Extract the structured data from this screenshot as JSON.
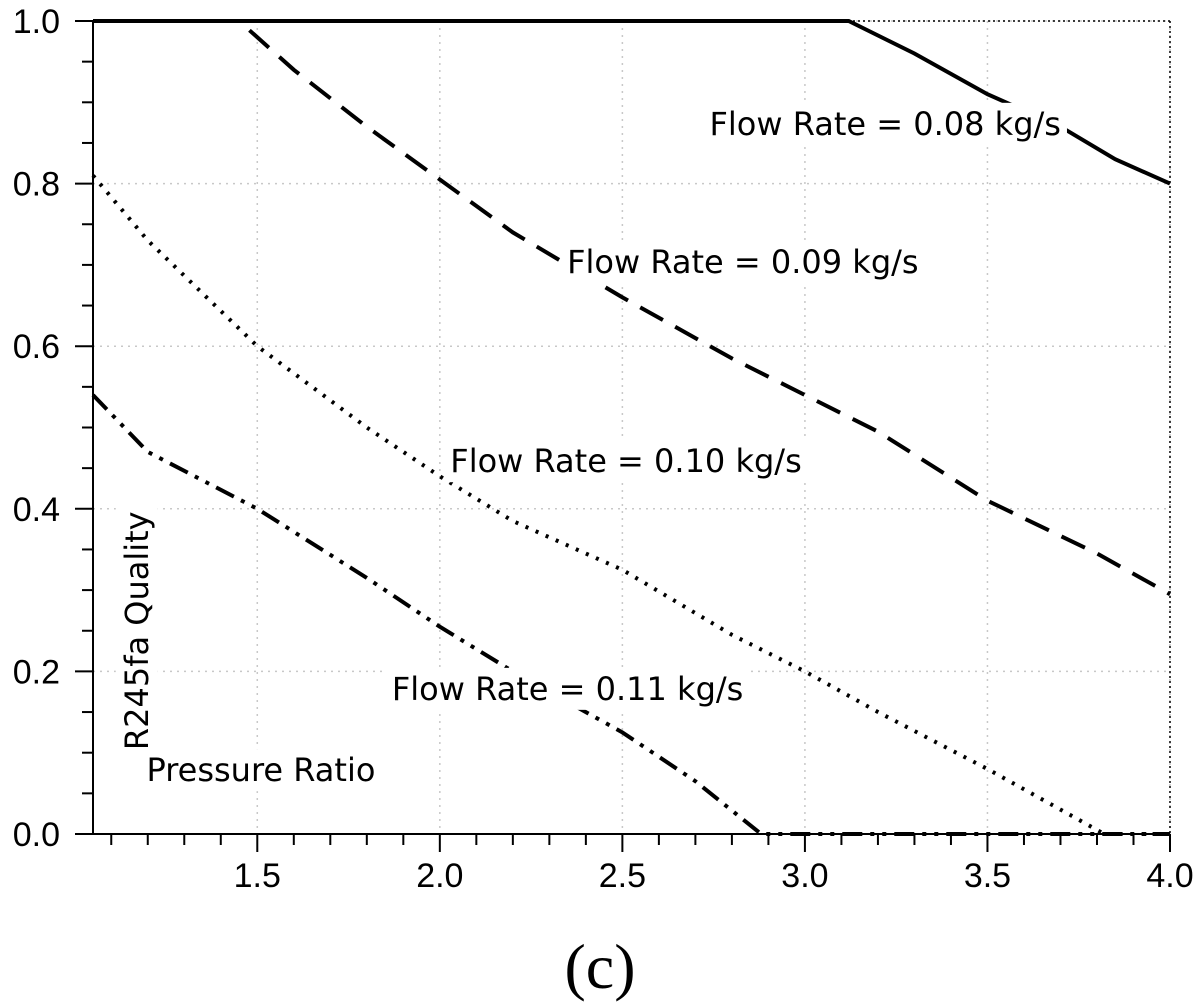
{
  "chart_data": {
    "type": "line",
    "title": "",
    "xlabel": "Pressure Ratio",
    "ylabel": "R245fa Quality",
    "panel_label": "(c)",
    "xlim": [
      1.05,
      4.0
    ],
    "ylim": [
      0.0,
      1.0
    ],
    "x_ticks": [
      1.5,
      2.0,
      2.5,
      3.0,
      3.5,
      4.0
    ],
    "x_tick_labels": [
      "1.5",
      "2.0",
      "2.5",
      "3.0",
      "3.5",
      "4.0"
    ],
    "y_ticks": [
      0.0,
      0.2,
      0.4,
      0.6,
      0.8,
      1.0
    ],
    "y_tick_labels": [
      "0.0",
      "0.2",
      "0.4",
      "0.6",
      "0.8",
      "1.0"
    ],
    "x_minor_step": 0.1,
    "y_minor_step": 0.05,
    "grid": true,
    "series": [
      {
        "name": "Flow Rate = 0.08 kg/s",
        "style": "solid",
        "x": [
          1.05,
          1.5,
          2.0,
          2.5,
          3.0,
          3.12,
          3.3,
          3.5,
          3.7,
          3.85,
          4.0
        ],
        "y": [
          1.0,
          1.0,
          1.0,
          1.0,
          1.0,
          1.0,
          0.96,
          0.91,
          0.87,
          0.83,
          0.8
        ]
      },
      {
        "name": "Flow Rate = 0.09 kg/s",
        "style": "dashed",
        "x": [
          1.05,
          1.45,
          1.6,
          1.8,
          2.0,
          2.2,
          2.5,
          2.8,
          3.0,
          3.2,
          3.5,
          3.8,
          4.0
        ],
        "y": [
          1.0,
          1.0,
          0.94,
          0.87,
          0.805,
          0.74,
          0.66,
          0.585,
          0.54,
          0.495,
          0.41,
          0.345,
          0.295
        ]
      },
      {
        "name": "Flow Rate = 0.10 kg/s",
        "style": "dotted",
        "x": [
          1.05,
          1.2,
          1.5,
          1.8,
          2.0,
          2.2,
          2.5,
          2.8,
          3.0,
          3.2,
          3.5,
          3.7,
          3.82,
          4.0
        ],
        "y": [
          0.81,
          0.73,
          0.6,
          0.5,
          0.44,
          0.385,
          0.325,
          0.245,
          0.2,
          0.15,
          0.08,
          0.03,
          0.0,
          0.0
        ]
      },
      {
        "name": "Flow Rate = 0.11 kg/s",
        "style": "dashdotdot",
        "x": [
          1.05,
          1.2,
          1.5,
          1.8,
          2.0,
          2.2,
          2.5,
          2.7,
          2.88,
          3.0,
          3.5,
          4.0
        ],
        "y": [
          0.54,
          0.47,
          0.4,
          0.315,
          0.255,
          0.2,
          0.125,
          0.065,
          0.0,
          0.0,
          0.0,
          0.0
        ]
      }
    ],
    "annotations": [
      {
        "text": "Flow Rate = 0.08 kg/s",
        "series": 0,
        "x": 3.22,
        "y": 0.86
      },
      {
        "text": "Flow Rate = 0.09 kg/s",
        "series": 1,
        "x": 2.83,
        "y": 0.69
      },
      {
        "text": "Flow Rate = 0.10 kg/s",
        "series": 2,
        "x": 2.51,
        "y": 0.445
      },
      {
        "text": "Flow Rate = 0.11 kg/s",
        "series": 3,
        "x": 2.35,
        "y": 0.165
      }
    ],
    "xlabel_pos": {
      "x": 1.51,
      "y": 0.065
    },
    "ylabel_pos": {
      "x": 1.2,
      "y": 0.25
    }
  }
}
